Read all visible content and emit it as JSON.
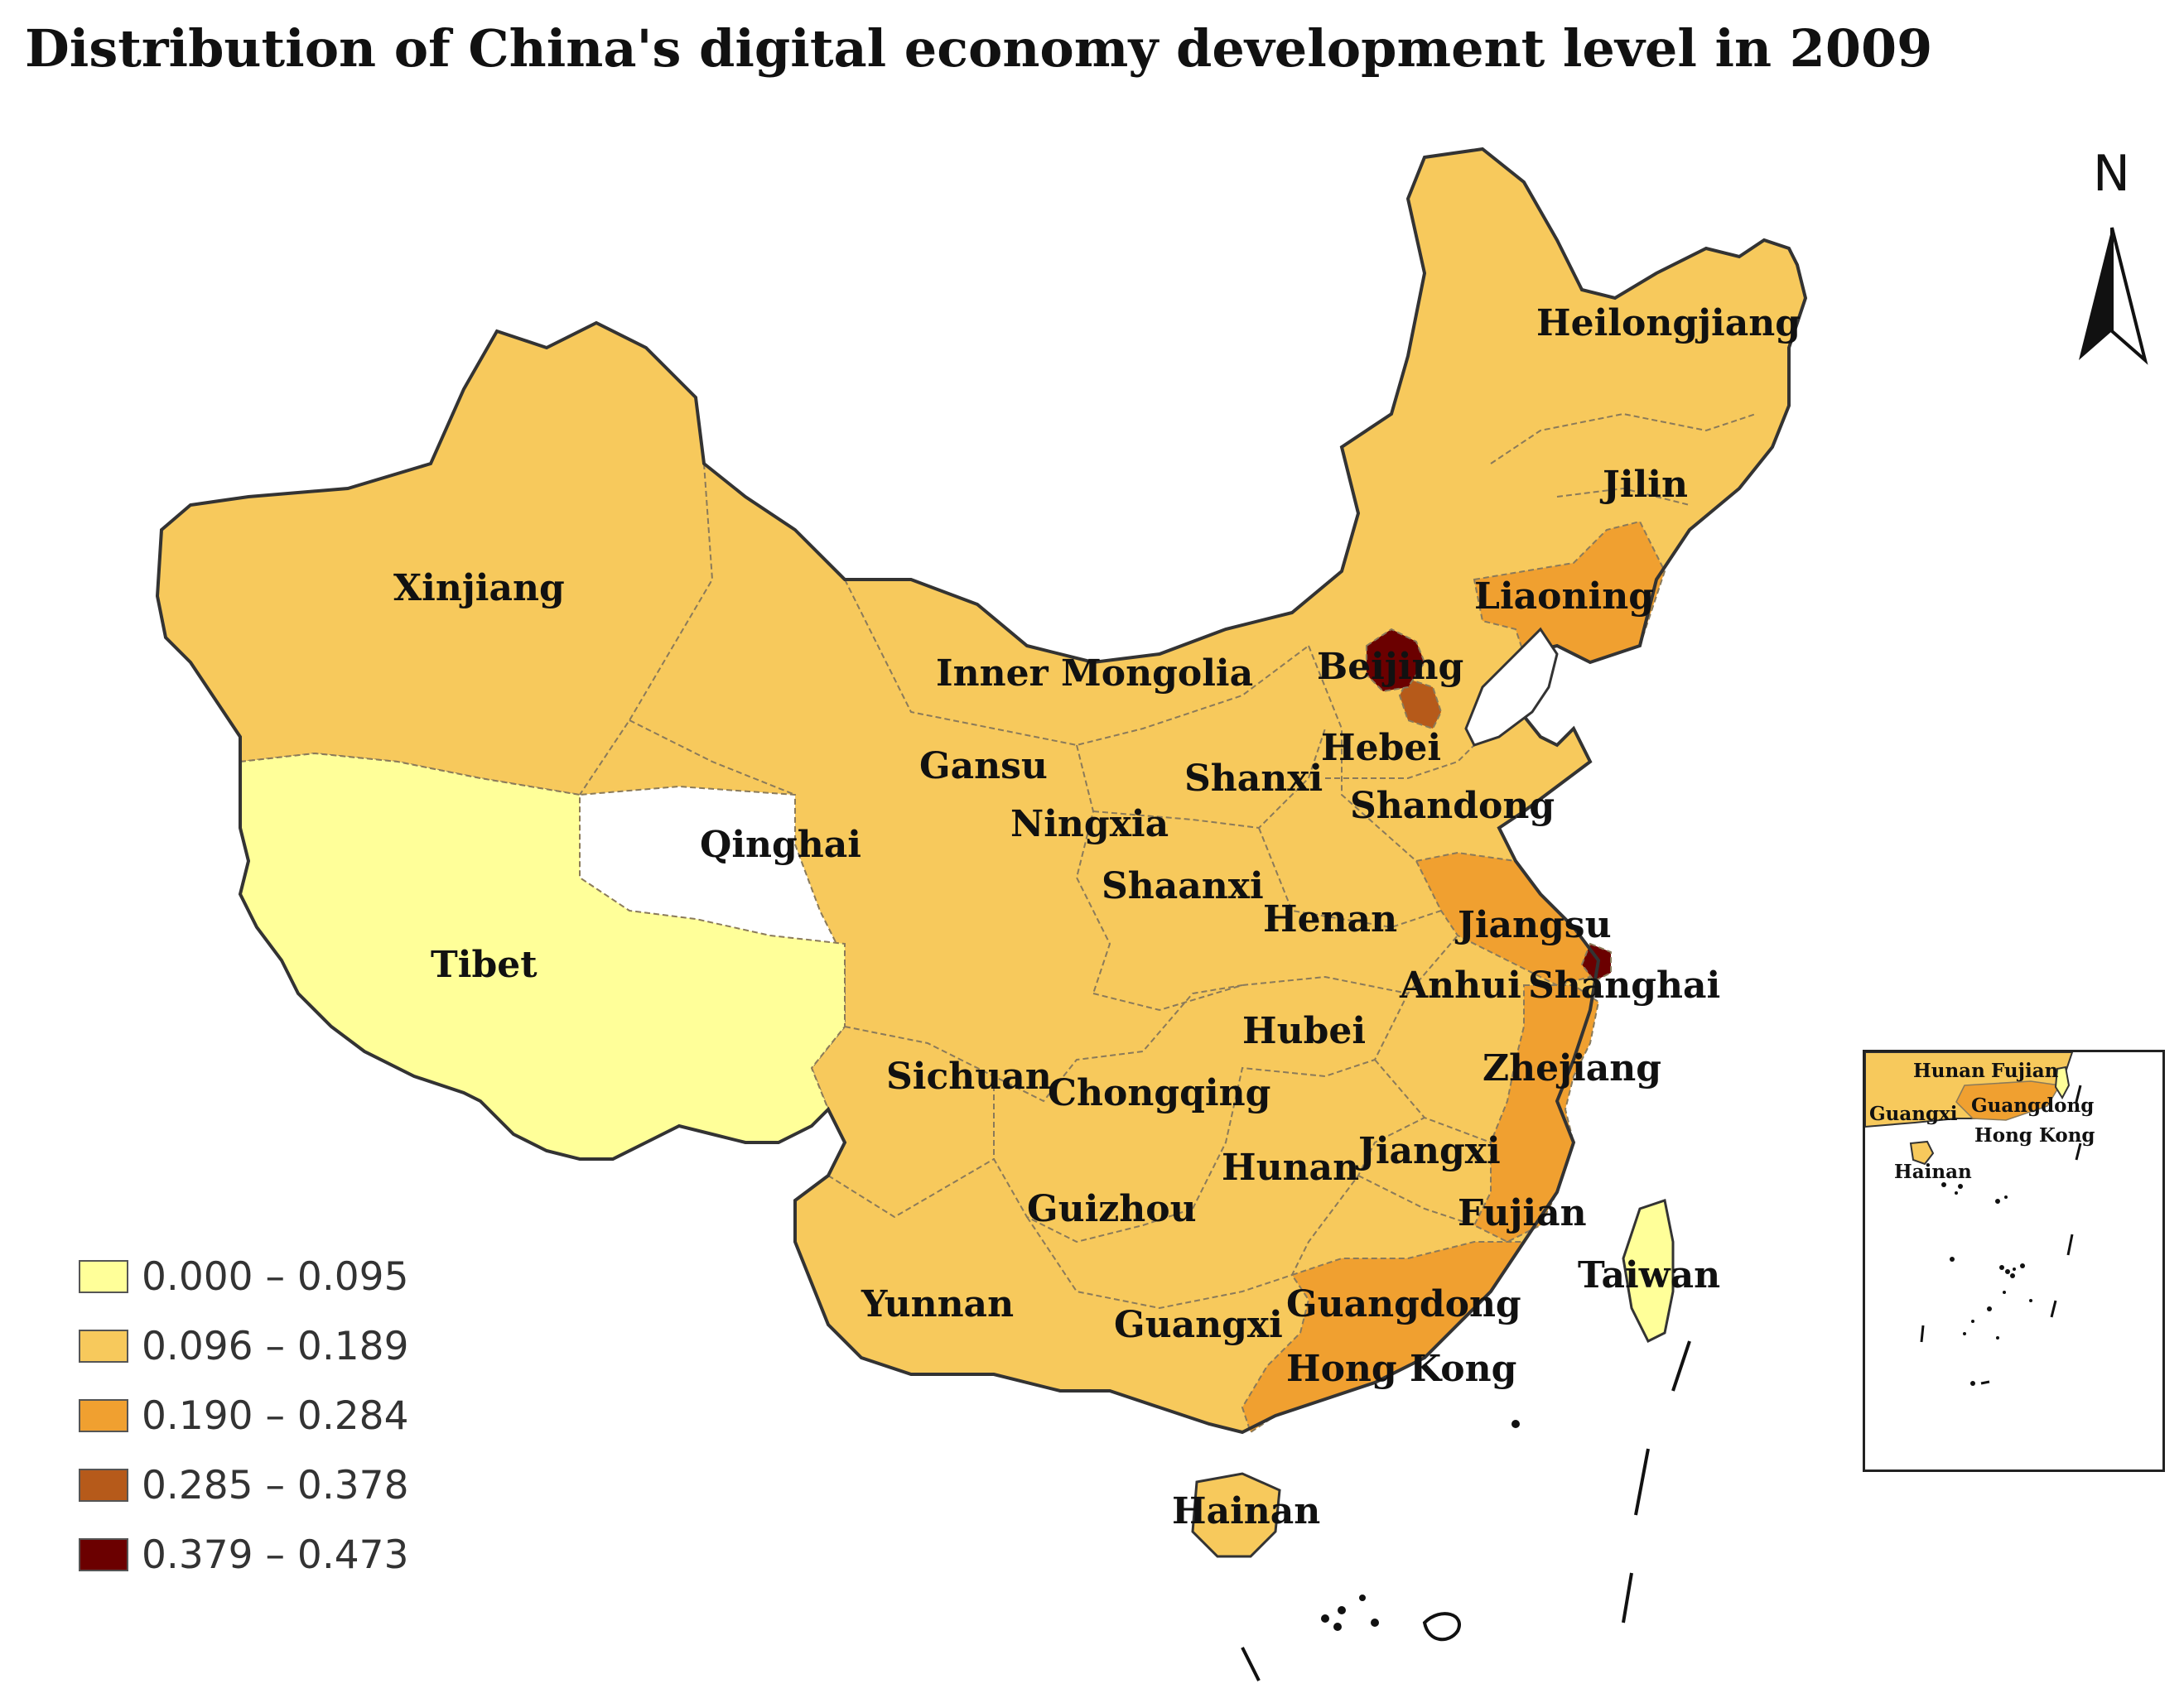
{
  "title": "Distribution of China's digital economy development level in 2009",
  "north_label": "N",
  "colors": {
    "class1": "#ffff99",
    "class2": "#f7c95c",
    "class3": "#f0a030",
    "class4": "#b65a1a",
    "class5": "#6b0000",
    "border": "#8a7a5a"
  },
  "legend": [
    {
      "label": "0.000 – 0.095",
      "color": "#ffff99"
    },
    {
      "label": "0.096 – 0.189",
      "color": "#f7c95c"
    },
    {
      "label": "0.190 – 0.284",
      "color": "#f0a030"
    },
    {
      "label": "0.285 – 0.378",
      "color": "#b65a1a"
    },
    {
      "label": "0.379 – 0.473",
      "color": "#6b0000"
    }
  ],
  "provinces": [
    {
      "name": "Heilongjiang",
      "class": 2
    },
    {
      "name": "Jilin",
      "class": 2
    },
    {
      "name": "Liaoning",
      "class": 3
    },
    {
      "name": "Xinjiang",
      "class": 2
    },
    {
      "name": "Inner Mongolia",
      "class": 2
    },
    {
      "name": "Beijing",
      "class": 5
    },
    {
      "name": "Hebei",
      "class": 2
    },
    {
      "name": "Gansu",
      "class": 2
    },
    {
      "name": "Shanxi",
      "class": 2
    },
    {
      "name": "Ningxia",
      "class": 2
    },
    {
      "name": "Shandong",
      "class": 2
    },
    {
      "name": "Qinghai",
      "class": 2
    },
    {
      "name": "Shaanxi",
      "class": 2
    },
    {
      "name": "Henan",
      "class": 2
    },
    {
      "name": "Jiangsu",
      "class": 3
    },
    {
      "name": "Tibet",
      "class": 1
    },
    {
      "name": "Anhui",
      "class": 2
    },
    {
      "name": "Shanghai",
      "class": 5
    },
    {
      "name": "Hubei",
      "class": 2
    },
    {
      "name": "Zhejiang",
      "class": 3
    },
    {
      "name": "Sichuan",
      "class": 2
    },
    {
      "name": "Chongqing",
      "class": 2
    },
    {
      "name": "Hunan",
      "class": 2
    },
    {
      "name": "Jiangxi",
      "class": 2
    },
    {
      "name": "Guizhou",
      "class": 2
    },
    {
      "name": "Fujian",
      "class": 3
    },
    {
      "name": "Taiwan",
      "class": 1
    },
    {
      "name": "Yunnan",
      "class": 2
    },
    {
      "name": "Guangxi",
      "class": 2
    },
    {
      "name": "Guangdong",
      "class": 3
    },
    {
      "name": "Hong Kong",
      "class": 3
    },
    {
      "name": "Hainan",
      "class": 2
    }
  ],
  "inset": {
    "labels": [
      "Hunan",
      "Fujian",
      "Guangxi",
      "Guangdong",
      "Hong Kong",
      "Hainan"
    ]
  }
}
